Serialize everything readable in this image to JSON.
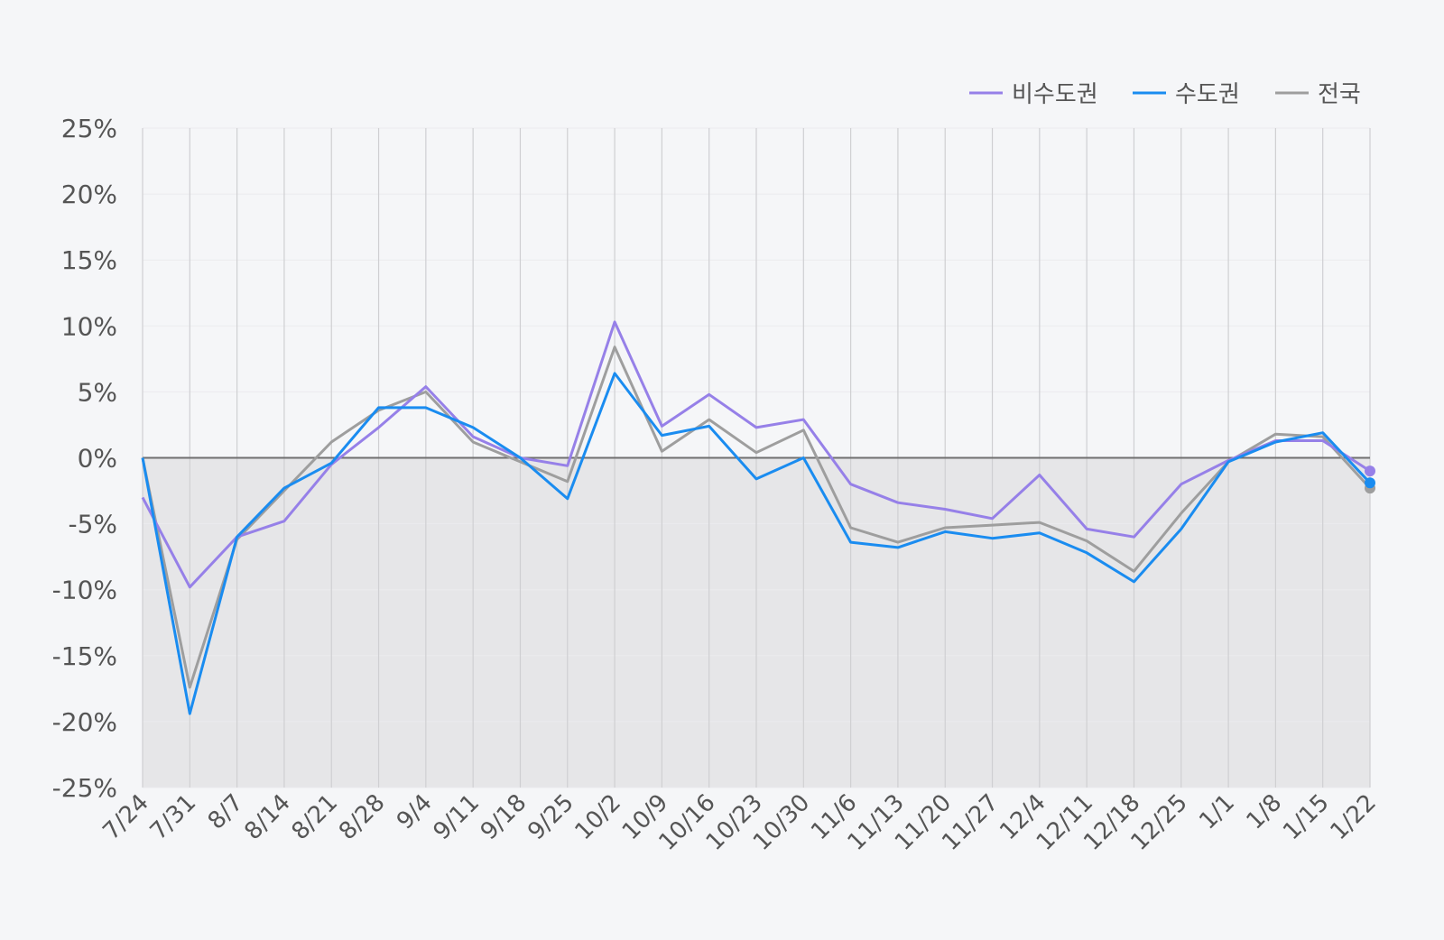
{
  "chart_data": {
    "type": "line",
    "categories": [
      "7/24",
      "7/31",
      "8/7",
      "8/14",
      "8/21",
      "8/28",
      "9/4",
      "9/11",
      "9/18",
      "9/25",
      "10/2",
      "10/9",
      "10/16",
      "10/23",
      "10/30",
      "11/6",
      "11/13",
      "11/20",
      "11/27",
      "12/4",
      "12/11",
      "12/18",
      "12/25",
      "1/1",
      "1/8",
      "1/15",
      "1/22"
    ],
    "y_tick_labels": [
      "25%",
      "20%",
      "15%",
      "10%",
      "5%",
      "0%",
      "-5%",
      "-10%",
      "-15%",
      "-20%",
      "-25%"
    ],
    "y_ticks": [
      25,
      20,
      15,
      10,
      5,
      0,
      -5,
      -10,
      -15,
      -20,
      -25
    ],
    "ylim": [
      -25,
      25
    ],
    "unit": "%",
    "grid": true,
    "legend_position": "top-right",
    "series": [
      {
        "name": "비수도권",
        "color": "#9680e8",
        "values": [
          -3.0,
          -9.8,
          -6.0,
          -4.8,
          -0.5,
          2.3,
          5.4,
          1.6,
          0.0,
          -0.6,
          10.3,
          2.4,
          4.8,
          2.3,
          2.9,
          -2.0,
          -3.4,
          -3.9,
          -4.6,
          -1.3,
          -5.4,
          -6.0,
          -2.0,
          -0.2,
          1.3,
          1.3,
          -1.0
        ]
      },
      {
        "name": "수도권",
        "color": "#1a8cf0",
        "values": [
          0.0,
          -19.4,
          -6.0,
          -2.3,
          -0.4,
          3.8,
          3.8,
          2.3,
          0.0,
          -3.1,
          6.4,
          1.7,
          2.4,
          -1.6,
          0.0,
          -6.4,
          -6.8,
          -5.6,
          -6.1,
          -5.7,
          -7.2,
          -9.4,
          -5.4,
          -0.3,
          1.2,
          1.9,
          -1.9
        ]
      },
      {
        "name": "전국",
        "color": "#9e9e9e",
        "values": [
          0.0,
          -17.4,
          -6.2,
          -2.5,
          1.2,
          3.6,
          5.0,
          1.2,
          -0.3,
          -1.8,
          8.4,
          0.5,
          2.9,
          0.4,
          2.1,
          -5.3,
          -6.4,
          -5.3,
          -5.1,
          -4.9,
          -6.3,
          -8.6,
          -4.2,
          -0.3,
          1.8,
          1.6,
          -2.3
        ]
      }
    ]
  }
}
